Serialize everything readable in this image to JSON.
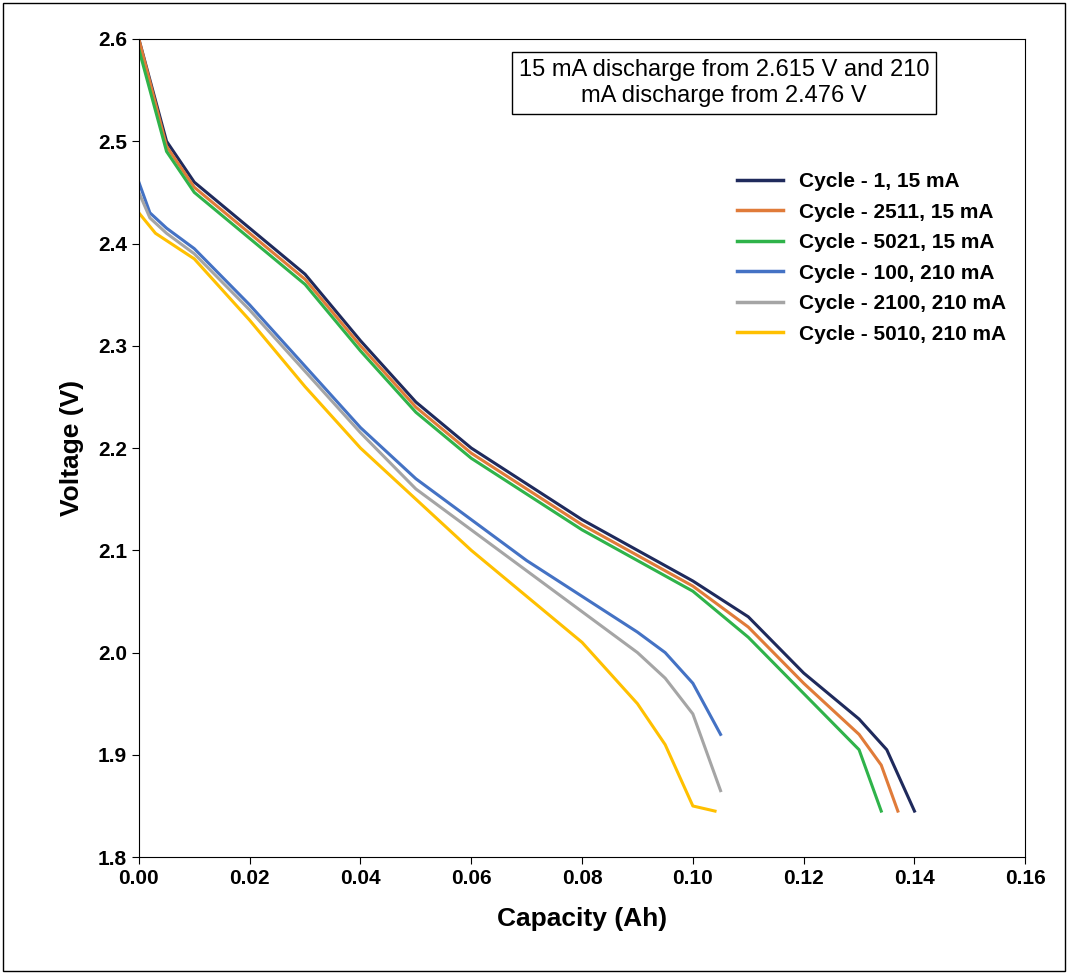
{
  "chart_data": {
    "type": "line",
    "annotation": "15 mA discharge from 2.615 V and 210 mA discharge from 2.476 V",
    "x_label": "Capacity (Ah)",
    "y_label": "Voltage (V)",
    "xlim": [
      0.0,
      0.16
    ],
    "xticks": [
      {
        "value": 0.0,
        "label": "0.00"
      },
      {
        "value": 0.02,
        "label": "0.02"
      },
      {
        "value": 0.04,
        "label": "0.04"
      },
      {
        "value": 0.06,
        "label": "0.06"
      },
      {
        "value": 0.08,
        "label": "0.08"
      },
      {
        "value": 0.1,
        "label": "0.10"
      },
      {
        "value": 0.12,
        "label": "0.12"
      },
      {
        "value": 0.14,
        "label": "0.14"
      },
      {
        "value": 0.16,
        "label": "0.16"
      }
    ],
    "ylim": [
      1.8,
      2.6
    ],
    "yticks": [
      1.8,
      1.9,
      2.0,
      2.1,
      2.2,
      2.3,
      2.4,
      2.5,
      2.6
    ],
    "grid": false,
    "legend": "upper right",
    "series": [
      {
        "name": "Cycle - 1, 15 mA",
        "color": "#1f2a5c",
        "x": [
          0.0,
          0.005,
          0.01,
          0.02,
          0.03,
          0.04,
          0.05,
          0.06,
          0.07,
          0.08,
          0.09,
          0.1,
          0.11,
          0.12,
          0.13,
          0.135,
          0.14
        ],
        "values": [
          2.6,
          2.5,
          2.46,
          2.415,
          2.37,
          2.305,
          2.245,
          2.2,
          2.165,
          2.13,
          2.1,
          2.07,
          2.035,
          1.98,
          1.935,
          1.905,
          1.845
        ]
      },
      {
        "name": "Cycle - 2511, 15 mA",
        "color": "#e07b39",
        "x": [
          0.0,
          0.005,
          0.01,
          0.02,
          0.03,
          0.04,
          0.05,
          0.06,
          0.07,
          0.08,
          0.09,
          0.1,
          0.11,
          0.12,
          0.13,
          0.134,
          0.137
        ],
        "values": [
          2.6,
          2.495,
          2.455,
          2.41,
          2.365,
          2.3,
          2.24,
          2.195,
          2.16,
          2.125,
          2.095,
          2.065,
          2.025,
          1.97,
          1.92,
          1.89,
          1.845
        ]
      },
      {
        "name": "Cycle - 5021, 15 mA",
        "color": "#2fb34a",
        "x": [
          0.0,
          0.005,
          0.01,
          0.02,
          0.03,
          0.04,
          0.05,
          0.06,
          0.07,
          0.08,
          0.09,
          0.1,
          0.11,
          0.12,
          0.13,
          0.134
        ],
        "values": [
          2.59,
          2.49,
          2.45,
          2.405,
          2.36,
          2.295,
          2.235,
          2.19,
          2.155,
          2.12,
          2.09,
          2.06,
          2.015,
          1.96,
          1.905,
          1.845
        ]
      },
      {
        "name": "Cycle - 100, 210 mA",
        "color": "#4472c4",
        "x": [
          0.0,
          0.002,
          0.005,
          0.01,
          0.02,
          0.03,
          0.04,
          0.05,
          0.06,
          0.07,
          0.08,
          0.09,
          0.095,
          0.1,
          0.105
        ],
        "values": [
          2.46,
          2.43,
          2.415,
          2.395,
          2.34,
          2.28,
          2.22,
          2.17,
          2.13,
          2.09,
          2.055,
          2.02,
          2.0,
          1.97,
          1.92
        ]
      },
      {
        "name": "Cycle - 2100, 210 mA",
        "color": "#a5a5a5",
        "x": [
          0.0,
          0.002,
          0.005,
          0.01,
          0.02,
          0.03,
          0.04,
          0.05,
          0.06,
          0.07,
          0.08,
          0.09,
          0.095,
          0.1,
          0.105
        ],
        "values": [
          2.45,
          2.425,
          2.41,
          2.39,
          2.335,
          2.275,
          2.215,
          2.16,
          2.12,
          2.08,
          2.04,
          2.0,
          1.975,
          1.94,
          1.865
        ]
      },
      {
        "name": "Cycle - 5010, 210 mA",
        "color": "#ffc000",
        "x": [
          0.0,
          0.003,
          0.01,
          0.02,
          0.03,
          0.04,
          0.05,
          0.06,
          0.07,
          0.08,
          0.09,
          0.095,
          0.1,
          0.104
        ],
        "values": [
          2.43,
          2.41,
          2.385,
          2.325,
          2.26,
          2.2,
          2.15,
          2.1,
          2.055,
          2.01,
          1.95,
          1.91,
          1.85,
          1.845
        ]
      }
    ]
  }
}
